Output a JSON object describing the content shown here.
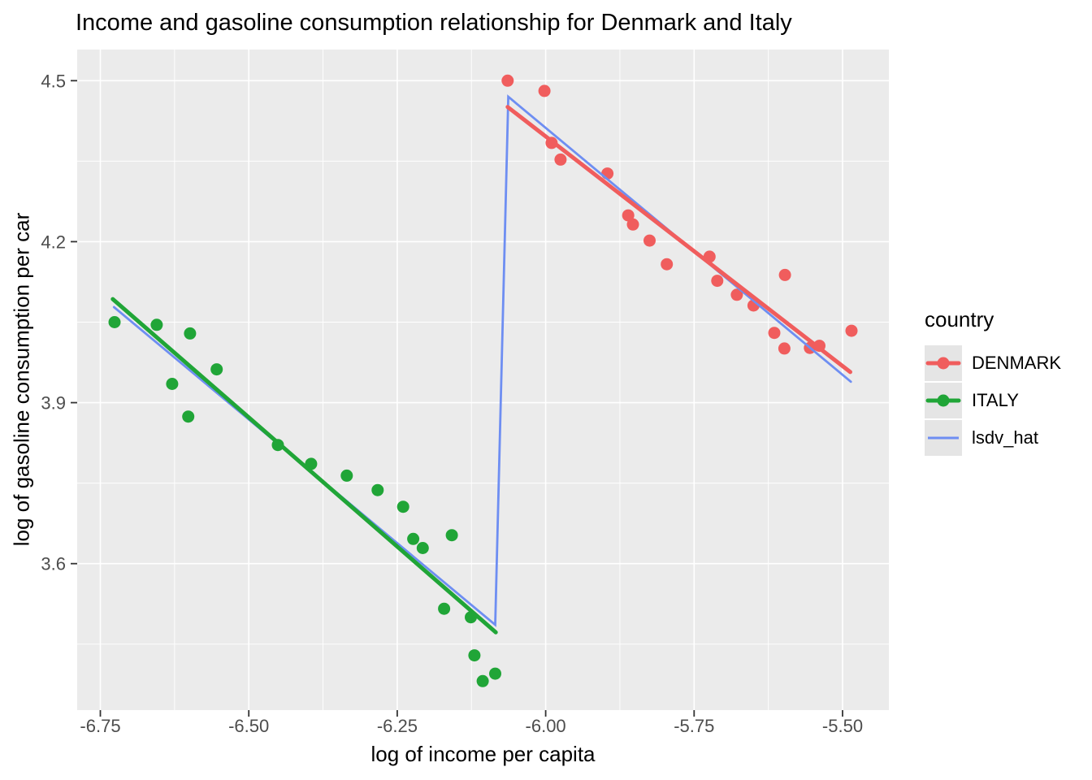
{
  "title": "Income and gasoline consumption relationship for Denmark and Italy",
  "colors": {
    "page_bg": "#FFFFFF",
    "panel_bg": "#EBEBEB",
    "grid": "#FFFFFF",
    "tick": "#333333",
    "tick_label": "#4D4D4D",
    "text": "#000000",
    "legend_key_bg": "#E5E5E5",
    "denmark": "#F05D5D",
    "italy": "#20A537",
    "lsdv_hat": "#6E8EF2"
  },
  "chart_data": {
    "type": "scatter",
    "title": "Income and gasoline consumption relationship for Denmark and Italy",
    "xlabel": "log of income per capita",
    "ylabel": "log of gasoline consumption per car",
    "xlim": [
      -6.789,
      -5.422
    ],
    "ylim": [
      3.327,
      4.558
    ],
    "x_breaks": [
      -6.75,
      -6.5,
      -6.25,
      -6.0,
      -5.75,
      -5.5
    ],
    "x_break_labels": [
      "-6.75",
      "-6.50",
      "-6.25",
      "-6.00",
      "-5.75",
      "-5.50"
    ],
    "x_minor_breaks": [
      -6.625,
      -6.375,
      -6.125,
      -5.875,
      -5.625
    ],
    "y_breaks": [
      3.6,
      3.9,
      4.2,
      4.5
    ],
    "y_break_labels": [
      "3.6",
      "3.9",
      "4.2",
      "4.5"
    ],
    "y_minor_breaks": [
      3.45,
      3.75,
      4.05,
      4.35
    ],
    "grid": true,
    "legend_position": "right",
    "legend_title": "country",
    "series": [
      {
        "name": "DENMARK",
        "role": "points",
        "color": "#F05D5D",
        "points": [
          [
            -6.064,
            4.5
          ],
          [
            -6.002,
            4.481
          ],
          [
            -5.99,
            4.384
          ],
          [
            -5.975,
            4.353
          ],
          [
            -5.896,
            4.327
          ],
          [
            -5.861,
            4.249
          ],
          [
            -5.853,
            4.232
          ],
          [
            -5.825,
            4.202
          ],
          [
            -5.796,
            4.158
          ],
          [
            -5.724,
            4.172
          ],
          [
            -5.711,
            4.127
          ],
          [
            -5.678,
            4.101
          ],
          [
            -5.65,
            4.081
          ],
          [
            -5.597,
            4.138
          ],
          [
            -5.615,
            4.03
          ],
          [
            -5.598,
            4.001
          ],
          [
            -5.555,
            4.002
          ],
          [
            -5.539,
            4.006
          ],
          [
            -5.485,
            4.034
          ]
        ]
      },
      {
        "name": "ITALY",
        "role": "points",
        "color": "#20A537",
        "points": [
          [
            -6.726,
            4.05
          ],
          [
            -6.655,
            4.045
          ],
          [
            -6.599,
            4.029
          ],
          [
            -6.629,
            3.935
          ],
          [
            -6.554,
            3.962
          ],
          [
            -6.602,
            3.874
          ],
          [
            -6.451,
            3.821
          ],
          [
            -6.395,
            3.786
          ],
          [
            -6.335,
            3.764
          ],
          [
            -6.283,
            3.737
          ],
          [
            -6.24,
            3.706
          ],
          [
            -6.223,
            3.646
          ],
          [
            -6.207,
            3.629
          ],
          [
            -6.158,
            3.653
          ],
          [
            -6.171,
            3.516
          ],
          [
            -6.126,
            3.5
          ],
          [
            -6.12,
            3.429
          ],
          [
            -6.106,
            3.381
          ],
          [
            -6.085,
            3.395
          ]
        ]
      },
      {
        "name": "lsdv_hat",
        "role": "fit_line",
        "color": "#6E8EF2",
        "points": [
          [
            -6.727,
            4.078
          ],
          [
            -6.085,
            3.486
          ],
          [
            -6.063,
            4.47
          ],
          [
            -5.486,
            3.939
          ]
        ]
      },
      {
        "name": "ITALY_trend",
        "role": "trend",
        "color": "#20A537",
        "points": [
          [
            -6.729,
            4.093
          ],
          [
            -6.084,
            3.472
          ]
        ]
      },
      {
        "name": "DENMARK_trend",
        "role": "trend",
        "color": "#F05D5D",
        "points": [
          [
            -6.064,
            4.451
          ],
          [
            -5.487,
            3.957
          ]
        ]
      }
    ],
    "legend_entries": [
      {
        "label": "DENMARK",
        "color": "#F05D5D",
        "point": true
      },
      {
        "label": "ITALY",
        "color": "#20A537",
        "point": true
      },
      {
        "label": "lsdv_hat",
        "color": "#6E8EF2",
        "point": false
      }
    ]
  }
}
